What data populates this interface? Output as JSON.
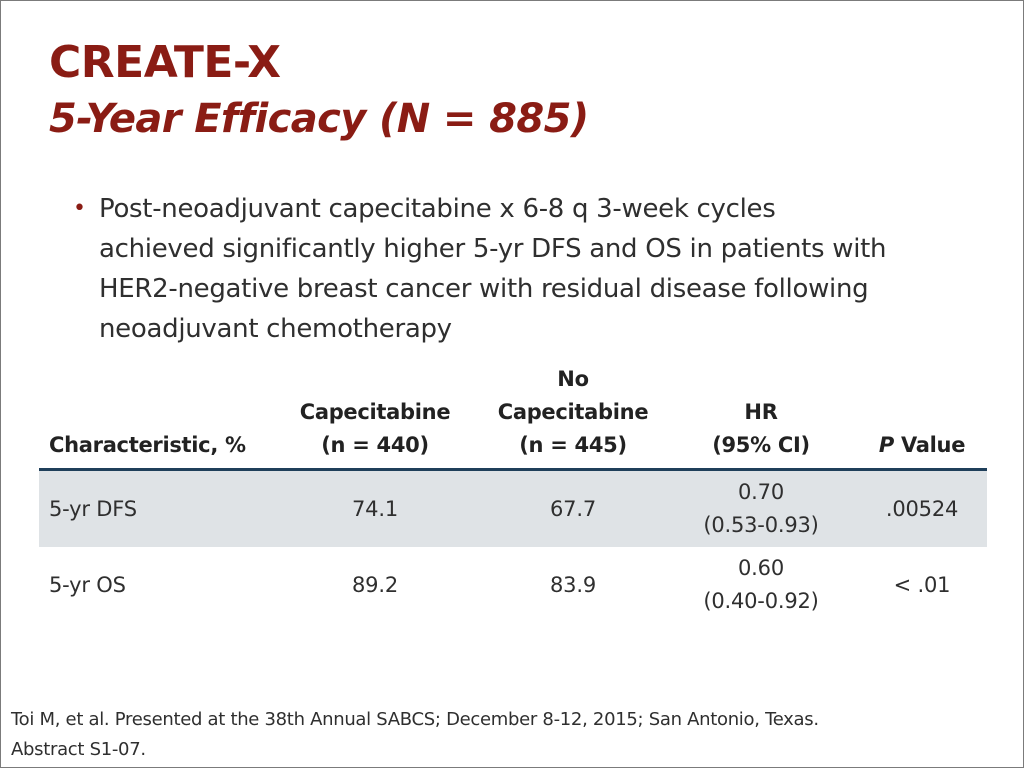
{
  "slide": {
    "title": "CREATE-X",
    "subtitle": "5-Year Efficacy (N = 885)",
    "bullets": [
      {
        "line1": "Post-neoadjuvant capecitabine x 6-8 q 3-week cycles",
        "line2": "achieved significantly higher 5-yr DFS and OS in patients with",
        "line3": "HER2-negative breast cancer with residual disease following",
        "line4": "neoadjuvant chemotherapy"
      }
    ],
    "bullet_glyph": "•",
    "accent_color": "#8a1c14"
  },
  "table": {
    "headers": {
      "characteristic": "Characteristic, %",
      "cap_line1": "Capecitabine",
      "cap_line2": "(n = 440)",
      "nocap_line1": "No",
      "nocap_line2": "Capecitabine",
      "nocap_line3": "(n = 445)",
      "hr_line1": "HR",
      "hr_line2": "(95% CI)",
      "p_italic": "P",
      "p_rest": " Value"
    },
    "rows": [
      {
        "characteristic": "5-yr DFS",
        "capecitabine": "74.1",
        "no_capecitabine": "67.7",
        "hr": "0.70",
        "ci": "(0.53-0.93)",
        "p_value": ".00524"
      },
      {
        "characteristic": "5-yr OS",
        "capecitabine": "89.2",
        "no_capecitabine": "83.9",
        "hr": "0.60",
        "ci": "(0.40-0.92)",
        "p_value": "< .01"
      }
    ]
  },
  "footnote": {
    "line1": "Toi M, et al. Presented at the 38th Annual SABCS; December 8-12, 2015; San Antonio, Texas.",
    "line2": "Abstract S1-07."
  }
}
